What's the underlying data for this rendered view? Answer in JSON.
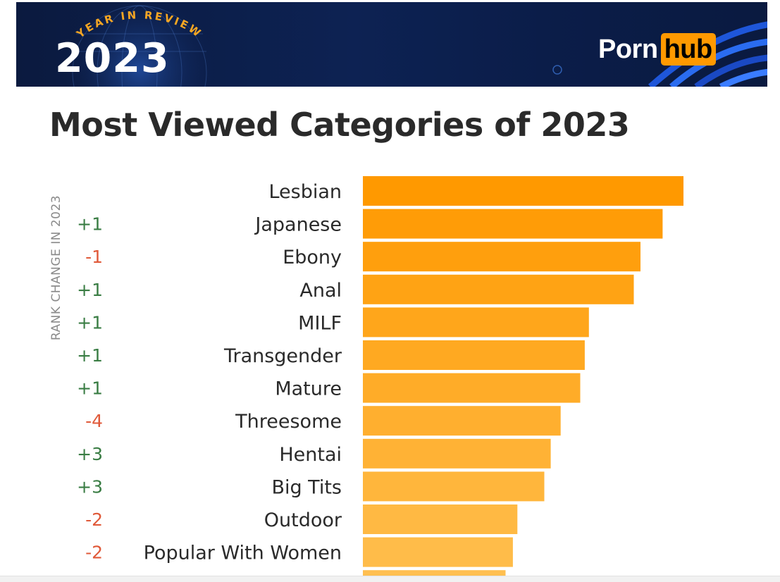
{
  "banner": {
    "tagline": "YEAR IN REVIEW",
    "year": "2023",
    "brand_left": "Porn",
    "brand_right": "hub",
    "colors": {
      "background": "#0d2253",
      "accent": "#ff9900",
      "tagline": "#f5a623"
    }
  },
  "side_label": "RANK CHANGE IN 2023",
  "chart_data": {
    "type": "bar",
    "orientation": "horizontal",
    "title": "Most Viewed Categories of 2023",
    "categories": [
      "Lesbian",
      "Japanese",
      "Ebony",
      "Anal",
      "MILF",
      "Transgender",
      "Mature",
      "Threesome",
      "Hentai",
      "Big Tits",
      "Outdoor",
      "Popular With Women"
    ],
    "values": [
      100,
      93.5,
      86.6,
      84.5,
      70.5,
      69.2,
      67.8,
      61.7,
      58.6,
      56.6,
      48.2,
      46.8
    ],
    "value_scale": "relative to top category = 100",
    "partially_visible_next_value": 44.5,
    "rank_change": [
      "",
      "+1",
      "-1",
      "+1",
      "+1",
      "+1",
      "+1",
      "-4",
      "+3",
      "+3",
      "-2",
      "-2"
    ],
    "colors": {
      "bar_top": "#ff9900",
      "bar_bottom": "#ffbf50",
      "rank_up": "#3a7d44",
      "rank_down": "#e05a3a"
    },
    "grid": false,
    "legend": "none"
  }
}
